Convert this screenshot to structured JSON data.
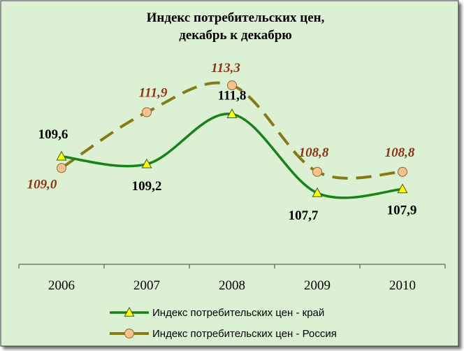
{
  "chart_data": {
    "type": "line",
    "title_lines": [
      "Индекс потребительских цен,",
      "декабрь к декабрю"
    ],
    "categories": [
      "2006",
      "2007",
      "2008",
      "2009",
      "2010"
    ],
    "series": [
      {
        "name": "Индекс потребительских цен - край",
        "values": [
          109.6,
          109.2,
          111.8,
          107.7,
          107.9
        ],
        "labels": [
          "109,6",
          "109,2",
          "111,8",
          "107,7",
          "107,9"
        ],
        "color": "#178217",
        "marker": "triangle",
        "marker_color": "#ffff00",
        "line_style": "solid"
      },
      {
        "name": "Индекс потребительских цен - Россия",
        "values": [
          109.0,
          111.9,
          113.3,
          108.8,
          108.8
        ],
        "labels": [
          "109,0",
          "111,9",
          "113,3",
          "108,8",
          "108,8"
        ],
        "color": "#857a14",
        "label_color": "#8b3410",
        "marker": "circle",
        "marker_color": "#f7c28c",
        "line_style": "dashed"
      }
    ],
    "background": "#dcf1d4",
    "grid": false,
    "legend_position": "bottom"
  }
}
